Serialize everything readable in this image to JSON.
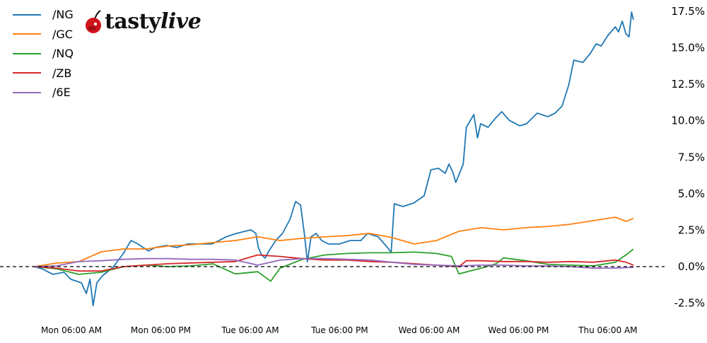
{
  "logo": {
    "text_main": "tasty",
    "text_italic": "live"
  },
  "chart_data": {
    "type": "line",
    "title": "",
    "xlabel": "",
    "ylabel": "",
    "ylim": [
      -3.6,
      18.3
    ],
    "y_ticks": [
      "-2.5%",
      "0.0%",
      "2.5%",
      "5.0%",
      "7.5%",
      "10.0%",
      "12.5%",
      "15.0%",
      "17.5%"
    ],
    "y_tick_values": [
      -2.5,
      0,
      2.5,
      5,
      7.5,
      10,
      12.5,
      15,
      17.5
    ],
    "y_axis_side": "right",
    "x_ticks": [
      "Mon 06:00 AM",
      "Mon 06:00 PM",
      "Tue 06:00 AM",
      "Tue 06:00 PM",
      "Wed 06:00 AM",
      "Wed 06:00 PM",
      "Thu 06:00 AM"
    ],
    "x_tick_times": [
      "Mon 06:00",
      "Mon 18:00",
      "Tue 06:00",
      "Tue 18:00",
      "Wed 06:00",
      "Wed 18:00",
      "Thu 06:00"
    ],
    "reference_line": {
      "value": 0,
      "style": "dashed",
      "color": "#000000"
    },
    "grid": false,
    "legend_position": "top-left",
    "series": [
      {
        "name": "/NG",
        "color": "#1f77b4",
        "points": [
          [
            "Mon 01:00",
            0
          ],
          [
            "Mon 02:05",
            -0.15
          ],
          [
            "Mon 03:30",
            -0.53
          ],
          [
            "Mon 05:00",
            -0.39
          ],
          [
            "Mon 05:55",
            -0.87
          ],
          [
            "Mon 07:20",
            -1.11
          ],
          [
            "Mon 08:00",
            -1.84
          ],
          [
            "Mon 08:30",
            -0.87
          ],
          [
            "Mon 08:55",
            -2.67
          ],
          [
            "Mon 09:25",
            -1.11
          ],
          [
            "Mon 10:10",
            -0.63
          ],
          [
            "Mon 11:35",
            -0.05
          ],
          [
            "Mon 13:00",
            0.92
          ],
          [
            "Mon 14:00",
            1.79
          ],
          [
            "Mon 14:55",
            1.55
          ],
          [
            "Mon 16:20",
            1.07
          ],
          [
            "Mon 17:15",
            1.31
          ],
          [
            "Mon 18:45",
            1.45
          ],
          [
            "Mon 20:10",
            1.31
          ],
          [
            "Mon 21:35",
            1.55
          ],
          [
            "Mon 23:00",
            1.55
          ],
          [
            "Tue 00:50",
            1.55
          ],
          [
            "Tue 01:50",
            1.79
          ],
          [
            "Tue 02:45",
            2.04
          ],
          [
            "Tue 04:10",
            2.28
          ],
          [
            "Tue 06:05",
            2.52
          ],
          [
            "Tue 06:45",
            2.28
          ],
          [
            "Tue 07:05",
            1.31
          ],
          [
            "Tue 07:30",
            0.82
          ],
          [
            "Tue 08:00",
            0.58
          ],
          [
            "Tue 08:30",
            1.07
          ],
          [
            "Tue 09:25",
            1.79
          ],
          [
            "Tue 10:20",
            2.28
          ],
          [
            "Tue 11:20",
            3.25
          ],
          [
            "Tue 12:05",
            4.46
          ],
          [
            "Tue 12:45",
            4.22
          ],
          [
            "Tue 13:15",
            2.28
          ],
          [
            "Tue 13:40",
            0.34
          ],
          [
            "Tue 14:10",
            2.04
          ],
          [
            "Tue 14:50",
            2.28
          ],
          [
            "Tue 15:35",
            1.79
          ],
          [
            "Tue 16:30",
            1.55
          ],
          [
            "Tue 17:55",
            1.55
          ],
          [
            "Tue 19:25",
            1.79
          ],
          [
            "Tue 20:50",
            1.79
          ],
          [
            "Tue 21:45",
            2.28
          ],
          [
            "Tue 23:10",
            2.04
          ],
          [
            "Wed 00:25",
            1.31
          ],
          [
            "Wed 00:55",
            0.97
          ],
          [
            "Wed 01:20",
            4.31
          ],
          [
            "Wed 02:30",
            4.12
          ],
          [
            "Wed 03:55",
            4.36
          ],
          [
            "Wed 05:20",
            4.85
          ],
          [
            "Wed 06:15",
            6.64
          ],
          [
            "Wed 07:15",
            6.74
          ],
          [
            "Wed 08:10",
            6.4
          ],
          [
            "Wed 08:40",
            7.03
          ],
          [
            "Wed 09:10",
            6.5
          ],
          [
            "Wed 09:35",
            5.77
          ],
          [
            "Wed 10:05",
            6.4
          ],
          [
            "Wed 10:35",
            7.03
          ],
          [
            "Wed 11:00",
            9.55
          ],
          [
            "Wed 12:00",
            10.42
          ],
          [
            "Wed 12:30",
            8.82
          ],
          [
            "Wed 12:55",
            9.79
          ],
          [
            "Wed 13:55",
            9.55
          ],
          [
            "Wed 14:50",
            10.13
          ],
          [
            "Wed 15:45",
            10.62
          ],
          [
            "Wed 16:45",
            10.03
          ],
          [
            "Wed 18:10",
            9.65
          ],
          [
            "Wed 19:05",
            9.79
          ],
          [
            "Wed 20:30",
            10.52
          ],
          [
            "Wed 21:55",
            10.28
          ],
          [
            "Wed 22:55",
            10.52
          ],
          [
            "Wed 23:50",
            11.0
          ],
          [
            "Thu 00:45",
            12.46
          ],
          [
            "Thu 01:25",
            14.15
          ],
          [
            "Thu 02:40",
            14.0
          ],
          [
            "Thu 03:40",
            14.64
          ],
          [
            "Thu 04:25",
            15.27
          ],
          [
            "Thu 05:05",
            15.12
          ],
          [
            "Thu 06:00",
            15.85
          ],
          [
            "Thu 07:00",
            16.43
          ],
          [
            "Thu 07:25",
            16.09
          ],
          [
            "Thu 07:55",
            16.82
          ],
          [
            "Thu 08:25",
            15.95
          ],
          [
            "Thu 08:50",
            15.75
          ],
          [
            "Thu 09:10",
            17.45
          ],
          [
            "Thu 09:25",
            16.92
          ]
        ]
      },
      {
        "name": "/GC",
        "color": "#ff7f0e",
        "points": [
          [
            "Mon 01:00",
            0
          ],
          [
            "Mon 04:00",
            0.24
          ],
          [
            "Mon 07:00",
            0.34
          ],
          [
            "Mon 10:00",
            1.02
          ],
          [
            "Mon 13:00",
            1.21
          ],
          [
            "Mon 16:00",
            1.21
          ],
          [
            "Mon 19:00",
            1.41
          ],
          [
            "Mon 22:00",
            1.5
          ],
          [
            "Tue 01:00",
            1.65
          ],
          [
            "Tue 04:00",
            1.79
          ],
          [
            "Tue 07:00",
            2.04
          ],
          [
            "Tue 10:00",
            1.79
          ],
          [
            "Tue 13:00",
            1.94
          ],
          [
            "Tue 16:00",
            2.04
          ],
          [
            "Tue 19:00",
            2.13
          ],
          [
            "Tue 22:00",
            2.28
          ],
          [
            "Wed 01:00",
            1.99
          ],
          [
            "Wed 04:00",
            1.55
          ],
          [
            "Wed 07:00",
            1.79
          ],
          [
            "Wed 10:00",
            2.42
          ],
          [
            "Wed 13:00",
            2.67
          ],
          [
            "Wed 16:00",
            2.52
          ],
          [
            "Wed 19:00",
            2.67
          ],
          [
            "Wed 22:00",
            2.76
          ],
          [
            "Thu 01:00",
            2.91
          ],
          [
            "Thu 04:00",
            3.15
          ],
          [
            "Thu 07:00",
            3.39
          ],
          [
            "Thu 08:25",
            3.1
          ],
          [
            "Thu 09:25",
            3.3
          ]
        ]
      },
      {
        "name": "/NQ",
        "color": "#2ca02c",
        "points": [
          [
            "Mon 01:00",
            0
          ],
          [
            "Mon 04:00",
            -0.15
          ],
          [
            "Mon 07:00",
            -0.53
          ],
          [
            "Mon 10:00",
            -0.39
          ],
          [
            "Mon 13:00",
            0
          ],
          [
            "Mon 16:00",
            0.1
          ],
          [
            "Mon 19:00",
            0
          ],
          [
            "Mon 22:00",
            0.05
          ],
          [
            "Tue 01:00",
            0.19
          ],
          [
            "Tue 04:00",
            -0.5
          ],
          [
            "Tue 07:00",
            -0.35
          ],
          [
            "Tue 08:45",
            -1.0
          ],
          [
            "Tue 10:00",
            -0.1
          ],
          [
            "Tue 13:00",
            0.5
          ],
          [
            "Tue 16:00",
            0.8
          ],
          [
            "Tue 19:00",
            0.9
          ],
          [
            "Tue 22:00",
            0.95
          ],
          [
            "Wed 01:00",
            0.95
          ],
          [
            "Wed 04:00",
            1.0
          ],
          [
            "Wed 07:00",
            0.9
          ],
          [
            "Wed 09:00",
            0.7
          ],
          [
            "Wed 10:00",
            -0.5
          ],
          [
            "Wed 13:00",
            -0.1
          ],
          [
            "Wed 15:00",
            0.2
          ],
          [
            "Wed 16:00",
            0.6
          ],
          [
            "Wed 19:00",
            0.4
          ],
          [
            "Wed 22:00",
            0.15
          ],
          [
            "Thu 01:00",
            0.1
          ],
          [
            "Thu 04:00",
            0.05
          ],
          [
            "Thu 07:00",
            0.3
          ],
          [
            "Thu 08:25",
            0.8
          ],
          [
            "Thu 09:25",
            1.2
          ]
        ]
      },
      {
        "name": "/ZB",
        "color": "#d62728",
        "points": [
          [
            "Mon 01:00",
            0
          ],
          [
            "Mon 04:00",
            -0.1
          ],
          [
            "Mon 07:00",
            -0.3
          ],
          [
            "Mon 10:00",
            -0.3
          ],
          [
            "Mon 11:00",
            -0.2
          ],
          [
            "Mon 13:00",
            0
          ],
          [
            "Mon 16:00",
            0.1
          ],
          [
            "Mon 19:00",
            0.2
          ],
          [
            "Mon 22:00",
            0.25
          ],
          [
            "Tue 01:00",
            0.3
          ],
          [
            "Tue 04:00",
            0.35
          ],
          [
            "Tue 07:00",
            0.8
          ],
          [
            "Tue 10:00",
            0.7
          ],
          [
            "Tue 13:00",
            0.55
          ],
          [
            "Tue 16:00",
            0.45
          ],
          [
            "Tue 19:00",
            0.45
          ],
          [
            "Tue 22:00",
            0.35
          ],
          [
            "Wed 01:00",
            0.3
          ],
          [
            "Wed 04:00",
            0.2
          ],
          [
            "Wed 07:00",
            0.1
          ],
          [
            "Wed 10:00",
            0
          ],
          [
            "Wed 11:00",
            0.4
          ],
          [
            "Wed 13:00",
            0.4
          ],
          [
            "Wed 16:00",
            0.35
          ],
          [
            "Wed 19:00",
            0.35
          ],
          [
            "Wed 22:00",
            0.3
          ],
          [
            "Thu 01:00",
            0.35
          ],
          [
            "Thu 04:00",
            0.3
          ],
          [
            "Thu 07:00",
            0.45
          ],
          [
            "Thu 08:25",
            0.3
          ],
          [
            "Thu 09:25",
            0.1
          ]
        ]
      },
      {
        "name": "/6E",
        "color": "#9467bd",
        "points": [
          [
            "Mon 01:00",
            0
          ],
          [
            "Mon 04:00",
            0.05
          ],
          [
            "Mon 07:00",
            0.35
          ],
          [
            "Mon 10:00",
            0.4
          ],
          [
            "Mon 13:00",
            0.5
          ],
          [
            "Mon 16:00",
            0.55
          ],
          [
            "Mon 19:00",
            0.55
          ],
          [
            "Mon 22:00",
            0.5
          ],
          [
            "Tue 01:00",
            0.5
          ],
          [
            "Tue 04:00",
            0.45
          ],
          [
            "Tue 07:00",
            0.1
          ],
          [
            "Tue 10:00",
            0.45
          ],
          [
            "Tue 13:00",
            0.55
          ],
          [
            "Tue 16:00",
            0.55
          ],
          [
            "Tue 19:00",
            0.5
          ],
          [
            "Tue 22:00",
            0.45
          ],
          [
            "Wed 01:00",
            0.3
          ],
          [
            "Wed 04:00",
            0.15
          ],
          [
            "Wed 07:00",
            0.1
          ],
          [
            "Wed 10:00",
            0.05
          ],
          [
            "Wed 13:00",
            0.1
          ],
          [
            "Wed 16:00",
            0.1
          ],
          [
            "Wed 19:00",
            0.05
          ],
          [
            "Wed 22:00",
            0.05
          ],
          [
            "Thu 01:00",
            0
          ],
          [
            "Thu 04:00",
            -0.1
          ],
          [
            "Thu 07:00",
            -0.1
          ],
          [
            "Thu 09:25",
            -0.05
          ]
        ]
      }
    ]
  }
}
